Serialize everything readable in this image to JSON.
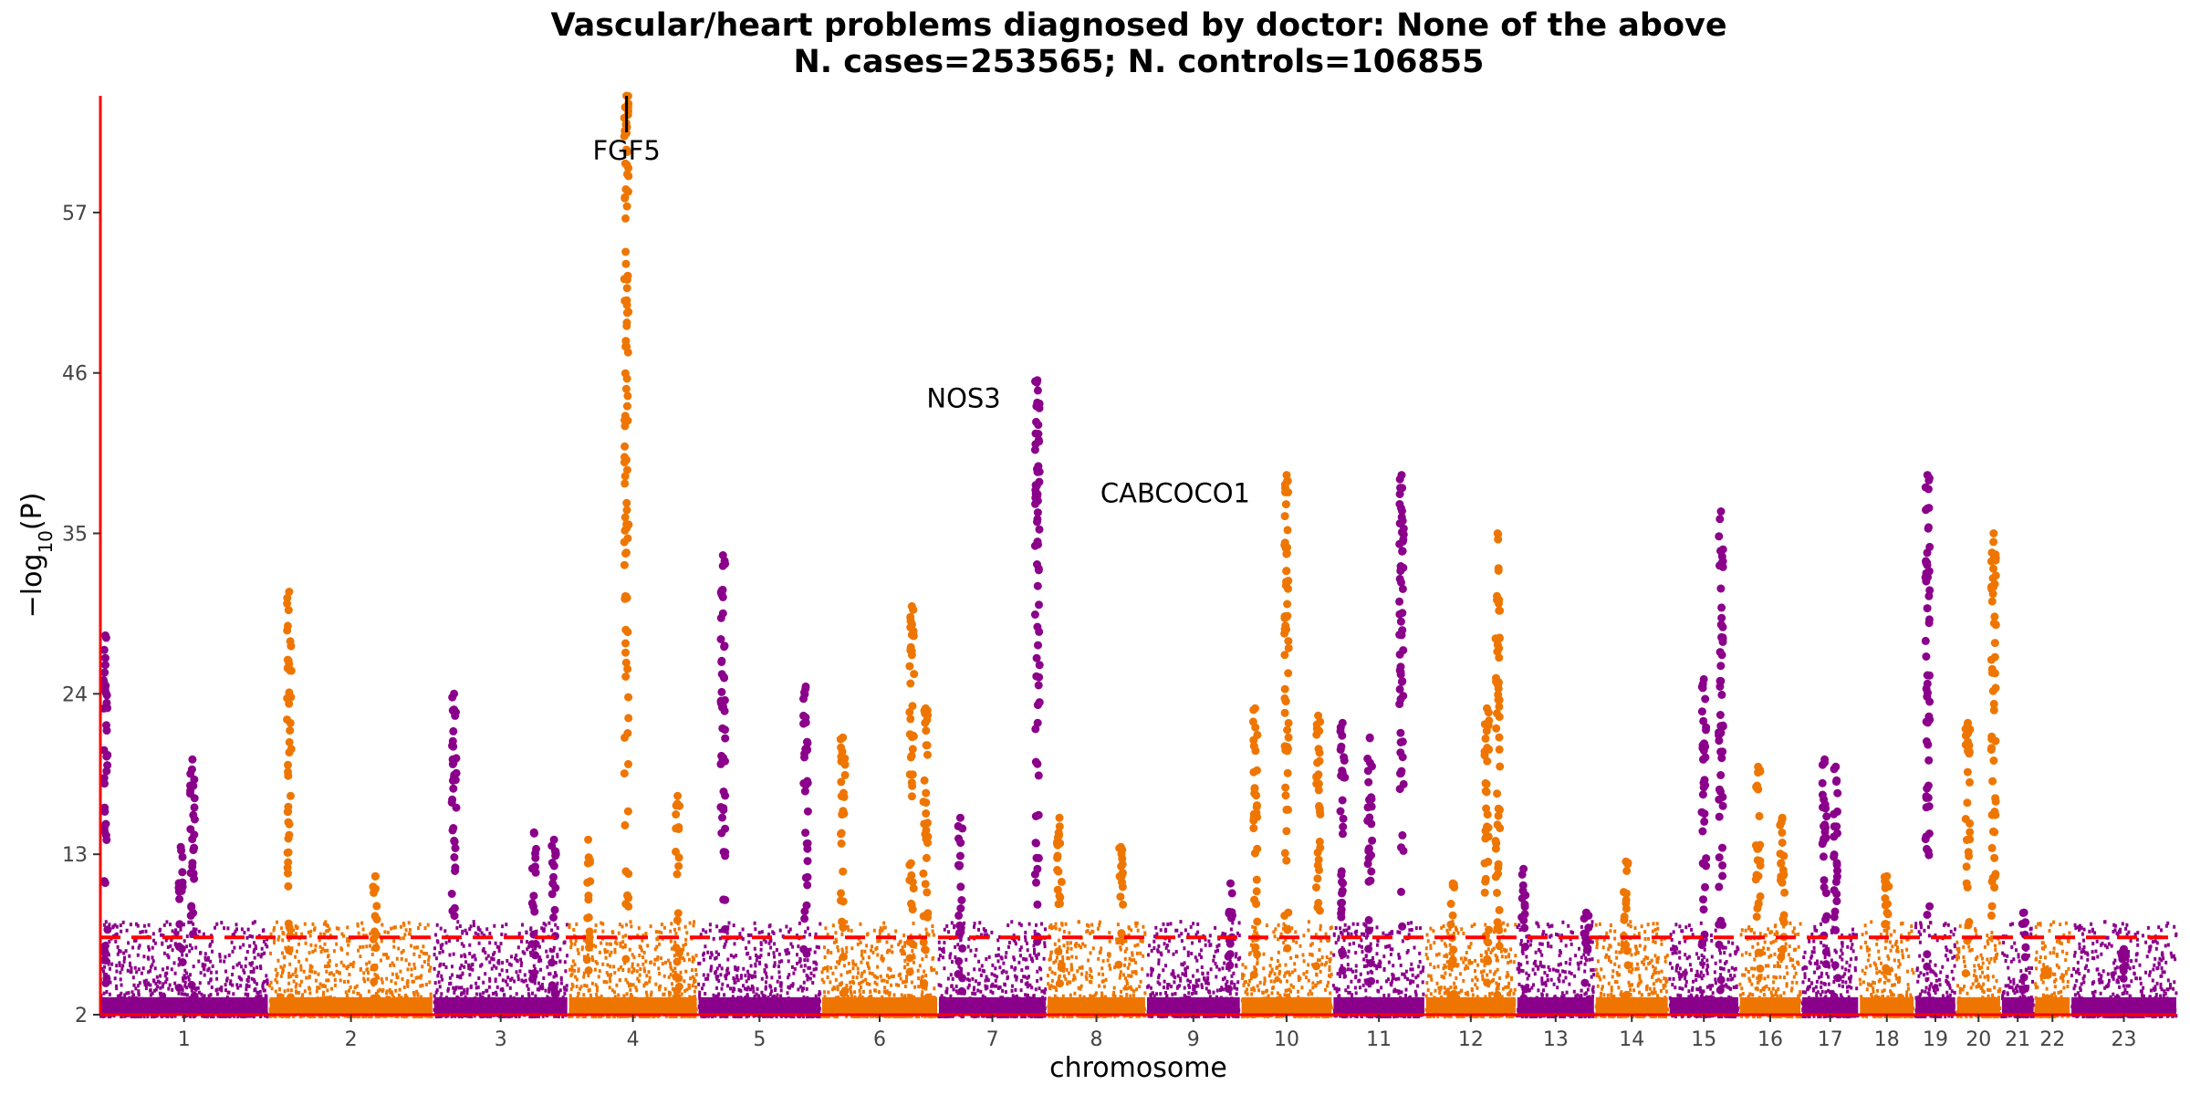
{
  "chart_data": {
    "type": "scatter",
    "title": "Vascular/heart problems diagnosed by doctor: None of the above",
    "subtitle": "N. cases=253565; N. controls=106855",
    "xlabel": "chromosome",
    "ylabel": "−log10(P)",
    "ylim": [
      2,
      65
    ],
    "yticks": [
      2,
      13,
      24,
      35,
      46,
      57
    ],
    "significance_threshold": 7.3,
    "threshold_style": "dashed red",
    "grid": false,
    "legend": "none",
    "colors": {
      "odd": "#8B008B",
      "even": "#EE7600",
      "threshold": "#FF0000",
      "axis": "#FF0000"
    },
    "chromosomes": [
      {
        "label": "1",
        "peaks": [
          {
            "pos": 0.03,
            "p": 28
          },
          {
            "pos": 0.55,
            "p": 19.5
          },
          {
            "pos": 0.48,
            "p": 13.5
          }
        ]
      },
      {
        "label": "2",
        "peaks": [
          {
            "pos": 0.12,
            "p": 31
          },
          {
            "pos": 0.65,
            "p": 11.5
          }
        ]
      },
      {
        "label": "3",
        "peaks": [
          {
            "pos": 0.15,
            "p": 24
          },
          {
            "pos": 0.75,
            "p": 14.5
          },
          {
            "pos": 0.9,
            "p": 14
          }
        ]
      },
      {
        "label": "4",
        "peaks": [
          {
            "pos": 0.45,
            "p": 65
          },
          {
            "pos": 0.85,
            "p": 17
          },
          {
            "pos": 0.15,
            "p": 14
          }
        ]
      },
      {
        "label": "5",
        "peaks": [
          {
            "pos": 0.2,
            "p": 33.5
          },
          {
            "pos": 0.88,
            "p": 24.5
          }
        ]
      },
      {
        "label": "6",
        "peaks": [
          {
            "pos": 0.18,
            "p": 21
          },
          {
            "pos": 0.78,
            "p": 30
          },
          {
            "pos": 0.9,
            "p": 23
          }
        ]
      },
      {
        "label": "7",
        "peaks": [
          {
            "pos": 0.2,
            "p": 15.5
          },
          {
            "pos": 0.92,
            "p": 45.5
          }
        ]
      },
      {
        "label": "8",
        "peaks": [
          {
            "pos": 0.12,
            "p": 15.5
          },
          {
            "pos": 0.75,
            "p": 13.5
          }
        ]
      },
      {
        "label": "9",
        "peaks": [
          {
            "pos": 0.9,
            "p": 11
          }
        ]
      },
      {
        "label": "10",
        "peaks": [
          {
            "pos": 0.15,
            "p": 23
          },
          {
            "pos": 0.5,
            "p": 39
          },
          {
            "pos": 0.85,
            "p": 22.5
          }
        ]
      },
      {
        "label": "11",
        "peaks": [
          {
            "pos": 0.1,
            "p": 22
          },
          {
            "pos": 0.4,
            "p": 21
          },
          {
            "pos": 0.75,
            "p": 39
          }
        ]
      },
      {
        "label": "12",
        "peaks": [
          {
            "pos": 0.3,
            "p": 11
          },
          {
            "pos": 0.68,
            "p": 23
          },
          {
            "pos": 0.8,
            "p": 35
          }
        ]
      },
      {
        "label": "13",
        "peaks": [
          {
            "pos": 0.08,
            "p": 12
          },
          {
            "pos": 0.9,
            "p": 9
          }
        ]
      },
      {
        "label": "14",
        "peaks": [
          {
            "pos": 0.42,
            "p": 12.5
          }
        ]
      },
      {
        "label": "15",
        "peaks": [
          {
            "pos": 0.5,
            "p": 25
          },
          {
            "pos": 0.75,
            "p": 36.5
          }
        ]
      },
      {
        "label": "16",
        "peaks": [
          {
            "pos": 0.3,
            "p": 19
          },
          {
            "pos": 0.7,
            "p": 15.5
          }
        ]
      },
      {
        "label": "17",
        "peaks": [
          {
            "pos": 0.4,
            "p": 19.5
          },
          {
            "pos": 0.6,
            "p": 19
          }
        ]
      },
      {
        "label": "18",
        "peaks": [
          {
            "pos": 0.5,
            "p": 11.5
          }
        ]
      },
      {
        "label": "19",
        "peaks": [
          {
            "pos": 0.3,
            "p": 39
          }
        ]
      },
      {
        "label": "20",
        "peaks": [
          {
            "pos": 0.25,
            "p": 22
          },
          {
            "pos": 0.85,
            "p": 35
          }
        ]
      },
      {
        "label": "21",
        "peaks": [
          {
            "pos": 0.7,
            "p": 9
          }
        ]
      },
      {
        "label": "22",
        "peaks": [
          {
            "pos": 0.3,
            "p": 5
          }
        ]
      },
      {
        "label": "23",
        "peaks": [
          {
            "pos": 0.5,
            "p": 6.5
          }
        ]
      }
    ],
    "annotations": [
      {
        "label": "FGF5",
        "chromosome": "4",
        "pos": 0.45,
        "p": 65
      },
      {
        "label": "NOS3",
        "chromosome": "7",
        "pos": 0.92,
        "p": 45.5
      },
      {
        "label": "CABCOCO1",
        "chromosome": "10",
        "pos": 0.5,
        "p": 39
      }
    ]
  }
}
